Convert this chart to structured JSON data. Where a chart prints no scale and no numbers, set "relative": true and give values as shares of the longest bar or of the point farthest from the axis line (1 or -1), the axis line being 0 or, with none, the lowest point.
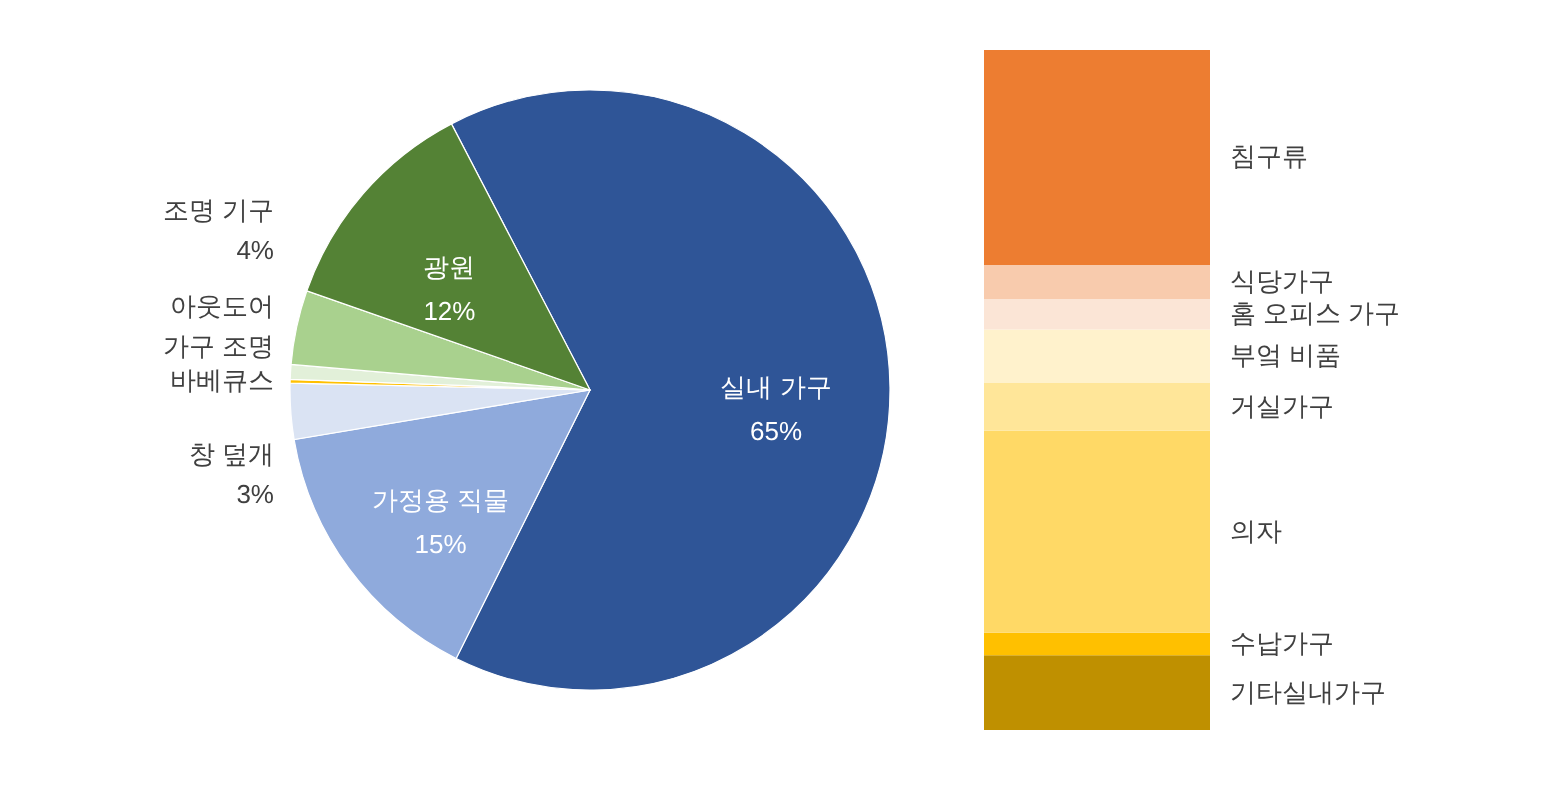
{
  "chart_data": [
    {
      "type": "pie",
      "categories": [
        "실내 가구",
        "가정용 직물",
        "창 덮개",
        "바베큐스",
        "아웃도어 가구 조명",
        "조명 기구",
        "광원"
      ],
      "values": [
        65,
        15,
        3,
        0.2,
        0.8,
        4,
        12
      ],
      "colors": [
        "#2f5597",
        "#8faadc",
        "#dae3f3",
        "#ffc000",
        "#e2f0d9",
        "#a9d18e",
        "#548235"
      ],
      "value_labels": [
        "65%",
        "15%",
        "3%",
        null,
        null,
        "4%",
        "12%"
      ]
    },
    {
      "type": "bar",
      "stacked": true,
      "relative": true,
      "categories": [
        null
      ],
      "series": [
        {
          "name": "기타실내가구",
          "color": "#bf9000",
          "values": [
            0.11
          ]
        },
        {
          "name": "수납가구",
          "color": "#ffc000",
          "values": [
            0.033
          ]
        },
        {
          "name": "의자",
          "color": "#ffd966",
          "values": [
            0.297
          ]
        },
        {
          "name": "거실가구",
          "color": "#ffe699",
          "values": [
            0.071
          ]
        },
        {
          "name": "부엌 비품",
          "color": "#fff2cc",
          "values": [
            0.078
          ]
        },
        {
          "name": "홈 오피스 가구",
          "color": "#fbe5d6",
          "values": [
            0.045
          ]
        },
        {
          "name": "식당가구",
          "color": "#f8cbad",
          "values": [
            0.05
          ]
        },
        {
          "name": "침구류",
          "color": "#ed7d31",
          "values": [
            0.316
          ]
        }
      ]
    }
  ]
}
